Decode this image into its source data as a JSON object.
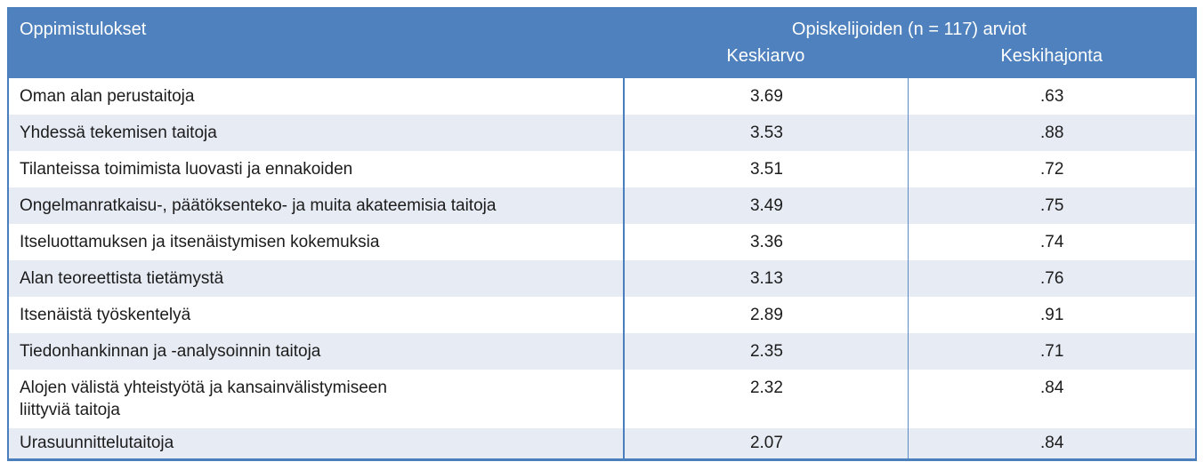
{
  "table": {
    "columns": {
      "learning_outcomes": "Oppimistulokset",
      "group_title": "Opiskelijoiden (n = 117) arviot",
      "mean": "Keskiarvo",
      "sd": "Keskihajonta"
    },
    "rows": [
      {
        "label": "Oman alan perustaitoja",
        "mean": "3.69",
        "sd": ".63"
      },
      {
        "label": "Yhdessä tekemisen taitoja",
        "mean": "3.53",
        "sd": ".88"
      },
      {
        "label": "Tilanteissa toimimista luovasti ja ennakoiden",
        "mean": "3.51",
        "sd": ".72"
      },
      {
        "label": "Ongelmanratkaisu-, päätöksenteko- ja muita akateemisia taitoja",
        "mean": "3.49",
        "sd": ".75"
      },
      {
        "label": "Itseluottamuksen ja itsenäistymisen kokemuksia",
        "mean": "3.36",
        "sd": ".74"
      },
      {
        "label": "Alan teoreettista tietämystä",
        "mean": "3.13",
        "sd": ".76"
      },
      {
        "label": "Itsenäistä työskentelyä",
        "mean": "2.89",
        "sd": ".91"
      },
      {
        "label": "Tiedonhankinnan ja -analysoinnin taitoja",
        "mean": "2.35",
        "sd": ".71"
      },
      {
        "label": "Alojen välistä yhteistyötä ja kansainvälistymiseen",
        "label2": "liittyviä taitoja",
        "mean": "2.32",
        "sd": ".84"
      },
      {
        "label": "Urasuunnittelutaitoja",
        "mean": "2.07",
        "sd": ".84"
      }
    ]
  },
  "colors": {
    "header_bg": "#4e81bd",
    "header_text": "#ffffff",
    "row_alt_bg": "#e7ebf4",
    "border_strong": "#4a7ebc",
    "border_thin": "#5b8ac4",
    "body_text": "#1c1c1c"
  }
}
